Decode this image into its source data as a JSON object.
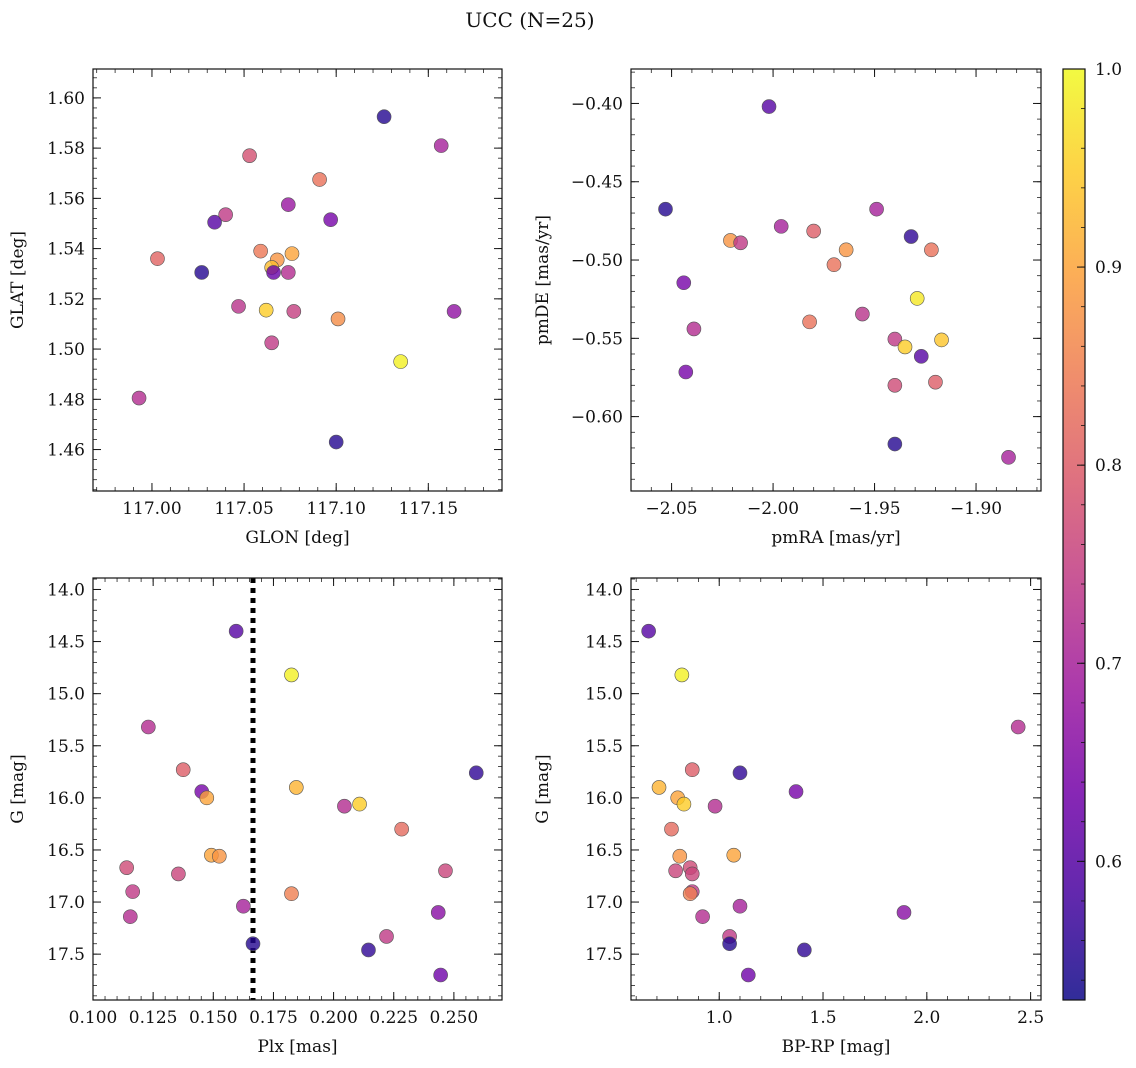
{
  "title": "UCC (N=25)",
  "colorbar": {
    "range": [
      0.53,
      1.0
    ],
    "ticks": [
      0.6,
      0.7,
      0.8,
      0.9,
      1.0
    ],
    "tick_labels": [
      "0.6",
      "0.7",
      "0.8",
      "0.9",
      "1.0"
    ],
    "colormap": [
      "#0d0887",
      "#46039f",
      "#7201a8",
      "#9c179e",
      "#bd3786",
      "#d8576b",
      "#ed7953",
      "#fb9f3a",
      "#fdca26",
      "#f0f921"
    ]
  },
  "marker_style": {
    "alpha": 0.8,
    "edge_color": "#555555"
  },
  "reference_line": {
    "panel": "plx",
    "x": 0.1665,
    "style": "dotted"
  },
  "chart_data": [
    {
      "id": "glon-glat",
      "type": "scatter",
      "xlabel": "GLON [deg]",
      "ylabel": "GLAT [deg]",
      "xlim": [
        116.968,
        117.19
      ],
      "ylim": [
        1.4435,
        1.6115
      ],
      "x_ticks": [
        117.0,
        117.05,
        117.1,
        117.15
      ],
      "x_tick_labels": [
        "117.00",
        "117.05",
        "117.10",
        "117.15"
      ],
      "y_ticks": [
        1.6,
        1.58,
        1.56,
        1.54,
        1.52,
        1.5,
        1.48,
        1.46
      ],
      "y_tick_labels": [
        "1.60",
        "1.58",
        "1.56",
        "1.54",
        "1.52",
        "1.50",
        "1.48",
        "1.46"
      ],
      "points": [
        {
          "x": 117.126,
          "y": 1.5925,
          "c": 0.55
        },
        {
          "x": 117.157,
          "y": 1.581,
          "c": 0.7
        },
        {
          "x": 117.053,
          "y": 1.577,
          "c": 0.78
        },
        {
          "x": 117.091,
          "y": 1.5675,
          "c": 0.83
        },
        {
          "x": 117.074,
          "y": 1.5575,
          "c": 0.68
        },
        {
          "x": 117.097,
          "y": 1.5515,
          "c": 0.64
        },
        {
          "x": 117.04,
          "y": 1.5535,
          "c": 0.74
        },
        {
          "x": 117.034,
          "y": 1.5505,
          "c": 0.6
        },
        {
          "x": 117.059,
          "y": 1.539,
          "c": 0.84
        },
        {
          "x": 117.076,
          "y": 1.538,
          "c": 0.9
        },
        {
          "x": 117.003,
          "y": 1.536,
          "c": 0.81
        },
        {
          "x": 117.068,
          "y": 1.5355,
          "c": 0.88
        },
        {
          "x": 117.065,
          "y": 1.5325,
          "c": 0.93
        },
        {
          "x": 117.066,
          "y": 1.5305,
          "c": 0.62
        },
        {
          "x": 117.074,
          "y": 1.5305,
          "c": 0.72
        },
        {
          "x": 117.027,
          "y": 1.5305,
          "c": 0.55
        },
        {
          "x": 117.047,
          "y": 1.517,
          "c": 0.73
        },
        {
          "x": 117.062,
          "y": 1.5155,
          "c": 0.95
        },
        {
          "x": 117.077,
          "y": 1.515,
          "c": 0.75
        },
        {
          "x": 117.164,
          "y": 1.515,
          "c": 0.67
        },
        {
          "x": 117.101,
          "y": 1.512,
          "c": 0.87
        },
        {
          "x": 117.065,
          "y": 1.5025,
          "c": 0.74
        },
        {
          "x": 117.135,
          "y": 1.495,
          "c": 0.99
        },
        {
          "x": 116.993,
          "y": 1.4805,
          "c": 0.72
        },
        {
          "x": 117.1,
          "y": 1.463,
          "c": 0.55
        }
      ]
    },
    {
      "id": "pm",
      "type": "scatter",
      "xlabel": "pmRA [mas/yr]",
      "ylabel": "pmDE [mas/yr]",
      "xlim": [
        -2.07,
        -1.868
      ],
      "ylim": [
        -0.6475,
        -0.378
      ],
      "x_ticks": [
        -2.05,
        -2.0,
        -1.95,
        -1.9
      ],
      "x_tick_labels": [
        "−2.05",
        "−2.00",
        "−1.95",
        "−1.90"
      ],
      "y_ticks": [
        -0.4,
        -0.45,
        -0.5,
        -0.55,
        -0.6
      ],
      "y_tick_labels": [
        "−0.40",
        "−0.45",
        "−0.50",
        "−0.55",
        "−0.60"
      ],
      "points": [
        {
          "x": -2.002,
          "y": -0.402,
          "c": 0.6
        },
        {
          "x": -2.053,
          "y": -0.4675,
          "c": 0.55
        },
        {
          "x": -1.949,
          "y": -0.4675,
          "c": 0.7
        },
        {
          "x": -1.996,
          "y": -0.4785,
          "c": 0.7
        },
        {
          "x": -1.98,
          "y": -0.4815,
          "c": 0.8
        },
        {
          "x": -1.932,
          "y": -0.485,
          "c": 0.56
        },
        {
          "x": -2.021,
          "y": -0.4875,
          "c": 0.88
        },
        {
          "x": -2.016,
          "y": -0.489,
          "c": 0.74
        },
        {
          "x": -1.964,
          "y": -0.4935,
          "c": 0.88
        },
        {
          "x": -1.922,
          "y": -0.4935,
          "c": 0.83
        },
        {
          "x": -1.97,
          "y": -0.503,
          "c": 0.83
        },
        {
          "x": -2.044,
          "y": -0.5145,
          "c": 0.64
        },
        {
          "x": -1.929,
          "y": -0.5245,
          "c": 0.98
        },
        {
          "x": -1.956,
          "y": -0.5345,
          "c": 0.73
        },
        {
          "x": -1.982,
          "y": -0.5395,
          "c": 0.83
        },
        {
          "x": -2.039,
          "y": -0.544,
          "c": 0.72
        },
        {
          "x": -1.94,
          "y": -0.5505,
          "c": 0.74
        },
        {
          "x": -1.917,
          "y": -0.551,
          "c": 0.94
        },
        {
          "x": -1.935,
          "y": -0.5555,
          "c": 0.95
        },
        {
          "x": -1.927,
          "y": -0.5615,
          "c": 0.6
        },
        {
          "x": -2.043,
          "y": -0.5715,
          "c": 0.64
        },
        {
          "x": -1.92,
          "y": -0.578,
          "c": 0.8
        },
        {
          "x": -1.94,
          "y": -0.58,
          "c": 0.77
        },
        {
          "x": -1.94,
          "y": -0.6175,
          "c": 0.55
        },
        {
          "x": -1.884,
          "y": -0.626,
          "c": 0.7
        }
      ]
    },
    {
      "id": "plx",
      "type": "scatter",
      "xlabel": "Plx [mas]",
      "ylabel": "G [mag]",
      "xlim": [
        0.1,
        0.27
      ],
      "ylim": [
        17.94,
        13.89
      ],
      "y_inverted": true,
      "x_ticks": [
        0.1,
        0.125,
        0.15,
        0.175,
        0.2,
        0.225,
        0.25
      ],
      "x_tick_labels": [
        "0.100",
        "0.125",
        "0.150",
        "0.175",
        "0.200",
        "0.225",
        "0.250"
      ],
      "y_ticks": [
        14.0,
        14.5,
        15.0,
        15.5,
        16.0,
        16.5,
        17.0,
        17.5
      ],
      "y_tick_labels": [
        "14.0",
        "14.5",
        "15.0",
        "15.5",
        "16.0",
        "16.5",
        "17.0",
        "17.5"
      ],
      "points": [
        {
          "x": 0.1595,
          "y": 14.4,
          "c": 0.6
        },
        {
          "x": 0.1825,
          "y": 14.82,
          "c": 0.99
        },
        {
          "x": 0.123,
          "y": 15.32,
          "c": 0.72
        },
        {
          "x": 0.1375,
          "y": 15.73,
          "c": 0.8
        },
        {
          "x": 0.2593,
          "y": 15.76,
          "c": 0.56
        },
        {
          "x": 0.1452,
          "y": 15.94,
          "c": 0.64
        },
        {
          "x": 0.1845,
          "y": 15.9,
          "c": 0.92
        },
        {
          "x": 0.1473,
          "y": 16.0,
          "c": 0.9
        },
        {
          "x": 0.2108,
          "y": 16.06,
          "c": 0.95
        },
        {
          "x": 0.2045,
          "y": 16.08,
          "c": 0.72
        },
        {
          "x": 0.2283,
          "y": 16.3,
          "c": 0.82
        },
        {
          "x": 0.1492,
          "y": 16.55,
          "c": 0.9
        },
        {
          "x": 0.1525,
          "y": 16.56,
          "c": 0.88
        },
        {
          "x": 0.114,
          "y": 16.67,
          "c": 0.77
        },
        {
          "x": 0.2465,
          "y": 16.7,
          "c": 0.76
        },
        {
          "x": 0.1355,
          "y": 16.73,
          "c": 0.76
        },
        {
          "x": 0.1165,
          "y": 16.9,
          "c": 0.74
        },
        {
          "x": 0.1825,
          "y": 16.92,
          "c": 0.85
        },
        {
          "x": 0.1625,
          "y": 17.04,
          "c": 0.7
        },
        {
          "x": 0.2435,
          "y": 17.1,
          "c": 0.66
        },
        {
          "x": 0.1155,
          "y": 17.14,
          "c": 0.72
        },
        {
          "x": 0.222,
          "y": 17.33,
          "c": 0.74
        },
        {
          "x": 0.1665,
          "y": 17.4,
          "c": 0.55
        },
        {
          "x": 0.2145,
          "y": 17.46,
          "c": 0.56
        },
        {
          "x": 0.2445,
          "y": 17.7,
          "c": 0.63
        }
      ]
    },
    {
      "id": "cmd",
      "type": "scatter",
      "xlabel": "BP-RP [mag]",
      "ylabel": "G [mag]",
      "xlim": [
        0.575,
        2.55
      ],
      "ylim": [
        17.94,
        13.89
      ],
      "y_inverted": true,
      "x_ticks": [
        1.0,
        1.5,
        2.0,
        2.5
      ],
      "x_tick_labels": [
        "1.0",
        "1.5",
        "2.0",
        "2.5"
      ],
      "y_ticks": [
        14.0,
        14.5,
        15.0,
        15.5,
        16.0,
        16.5,
        17.0,
        17.5
      ],
      "y_tick_labels": [
        "14.0",
        "14.5",
        "15.0",
        "15.5",
        "16.0",
        "16.5",
        "17.0",
        "17.5"
      ],
      "points": [
        {
          "x": 0.66,
          "y": 14.4,
          "c": 0.6
        },
        {
          "x": 0.82,
          "y": 14.82,
          "c": 0.99
        },
        {
          "x": 2.44,
          "y": 15.32,
          "c": 0.72
        },
        {
          "x": 0.87,
          "y": 15.73,
          "c": 0.8
        },
        {
          "x": 1.1,
          "y": 15.76,
          "c": 0.56
        },
        {
          "x": 1.37,
          "y": 15.94,
          "c": 0.64
        },
        {
          "x": 0.71,
          "y": 15.9,
          "c": 0.92
        },
        {
          "x": 0.8,
          "y": 16.0,
          "c": 0.9
        },
        {
          "x": 0.83,
          "y": 16.06,
          "c": 0.95
        },
        {
          "x": 0.98,
          "y": 16.08,
          "c": 0.72
        },
        {
          "x": 0.77,
          "y": 16.3,
          "c": 0.82
        },
        {
          "x": 0.81,
          "y": 16.56,
          "c": 0.88
        },
        {
          "x": 1.07,
          "y": 16.55,
          "c": 0.9
        },
        {
          "x": 0.86,
          "y": 16.67,
          "c": 0.77
        },
        {
          "x": 0.79,
          "y": 16.7,
          "c": 0.76
        },
        {
          "x": 0.87,
          "y": 16.73,
          "c": 0.76
        },
        {
          "x": 0.87,
          "y": 16.9,
          "c": 0.74
        },
        {
          "x": 0.86,
          "y": 16.92,
          "c": 0.85
        },
        {
          "x": 1.1,
          "y": 17.04,
          "c": 0.7
        },
        {
          "x": 1.89,
          "y": 17.1,
          "c": 0.66
        },
        {
          "x": 0.92,
          "y": 17.14,
          "c": 0.72
        },
        {
          "x": 1.05,
          "y": 17.33,
          "c": 0.74
        },
        {
          "x": 1.05,
          "y": 17.4,
          "c": 0.55
        },
        {
          "x": 1.41,
          "y": 17.46,
          "c": 0.56
        },
        {
          "x": 1.14,
          "y": 17.7,
          "c": 0.63
        }
      ]
    }
  ]
}
